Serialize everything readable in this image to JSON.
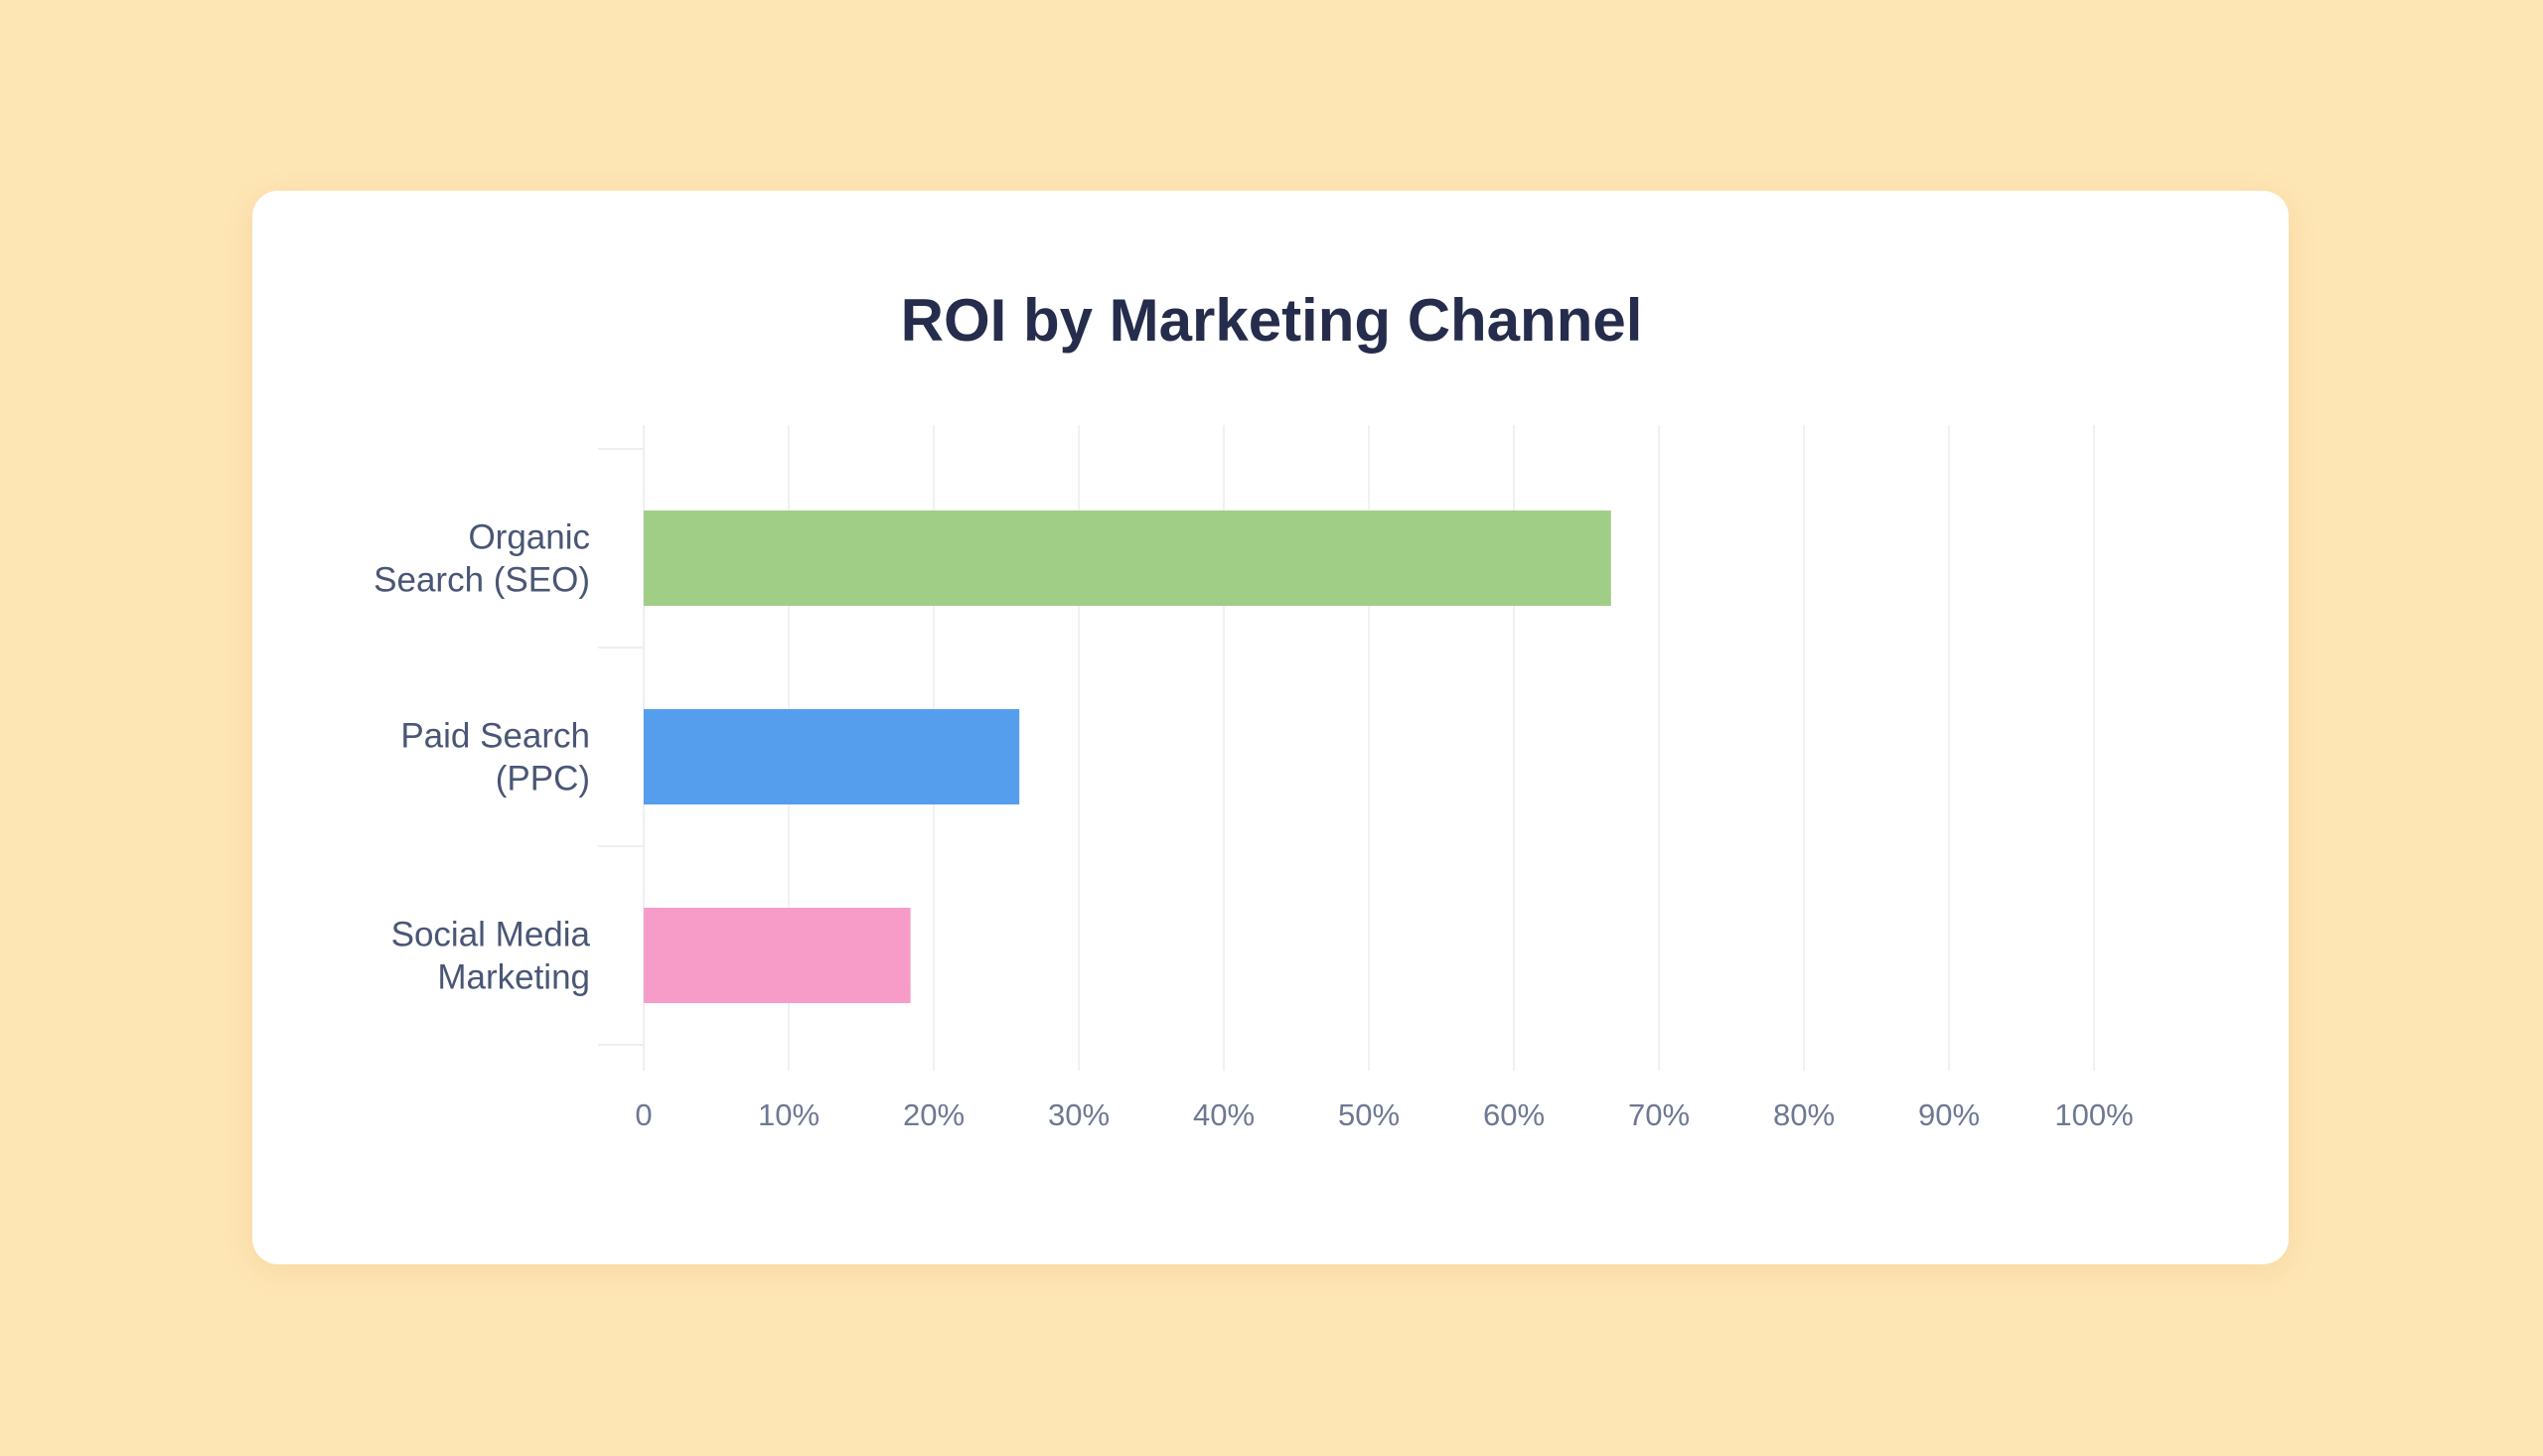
{
  "chart_data": {
    "type": "bar",
    "orientation": "horizontal",
    "title": "ROI by Marketing Channel",
    "categories": [
      [
        "Organic",
        "Search (SEO)"
      ],
      [
        "Paid Search",
        "(PPC)"
      ],
      [
        "Social Media",
        "Marketing"
      ]
    ],
    "values": [
      66.7,
      25.9,
      18.4
    ],
    "colors": [
      "#A1CE87",
      "#559EEE",
      "#F79CC8"
    ],
    "xlim": [
      0,
      100
    ],
    "x_ticks": [
      0,
      10,
      20,
      30,
      40,
      50,
      60,
      70,
      80,
      90,
      100
    ],
    "x_tick_labels": [
      "0",
      "10%",
      "20%",
      "30%",
      "40%",
      "50%",
      "60%",
      "70%",
      "80%",
      "90%",
      "100%"
    ],
    "grid": true,
    "xlabel": "",
    "ylabel": ""
  }
}
